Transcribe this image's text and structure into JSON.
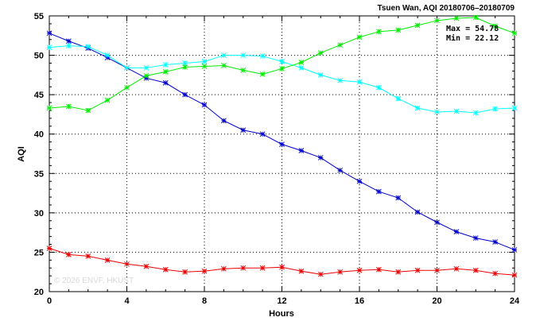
{
  "chart_data": {
    "type": "line",
    "title": "Tsuen Wan, AQI 20180706–20180709",
    "xlabel": "Hours",
    "ylabel": "AQI",
    "xlim": [
      0,
      24
    ],
    "ylim": [
      20,
      55
    ],
    "xticks": [
      0,
      4,
      8,
      12,
      16,
      20,
      24
    ],
    "yticks": [
      20,
      25,
      30,
      35,
      40,
      45,
      50,
      55
    ],
    "grid": true,
    "stats": {
      "max": "Max = 54.78",
      "min": "Min = 22.12"
    },
    "watermark": "© 2026 ENVF, HKUST",
    "x": [
      0,
      1,
      2,
      3,
      4,
      5,
      6,
      7,
      8,
      9,
      10,
      11,
      12,
      13,
      14,
      15,
      16,
      17,
      18,
      19,
      20,
      21,
      22,
      23,
      24
    ],
    "series": [
      {
        "color": "#0000cc",
        "values": [
          52.8,
          51.8,
          50.9,
          49.7,
          48.4,
          47.1,
          46.5,
          45.0,
          43.7,
          41.7,
          40.5,
          40.0,
          38.7,
          37.9,
          37.0,
          35.4,
          34.0,
          32.7,
          31.9,
          30.1,
          28.8,
          27.6,
          26.8,
          26.3,
          25.3
        ]
      },
      {
        "color": "#00ffff",
        "values": [
          51.0,
          51.2,
          51.1,
          50.0,
          48.4,
          48.4,
          48.8,
          49.0,
          49.2,
          50.0,
          50.0,
          49.9,
          49.2,
          48.4,
          47.5,
          46.8,
          46.6,
          45.9,
          44.5,
          43.3,
          42.8,
          42.9,
          42.7,
          43.2,
          43.3
        ]
      },
      {
        "color": "#00ee00",
        "values": [
          43.3,
          43.5,
          43.0,
          44.3,
          45.9,
          47.4,
          47.9,
          48.5,
          48.6,
          48.7,
          48.1,
          47.6,
          48.3,
          49.1,
          50.3,
          51.3,
          52.3,
          53.0,
          53.2,
          53.8,
          54.4,
          54.7,
          54.8,
          53.7,
          52.8
        ]
      },
      {
        "color": "#ee0000",
        "values": [
          25.5,
          24.7,
          24.5,
          24.0,
          23.5,
          23.2,
          22.8,
          22.5,
          22.6,
          22.9,
          23.0,
          23.0,
          23.1,
          22.6,
          22.2,
          22.5,
          22.7,
          22.8,
          22.5,
          22.7,
          22.7,
          22.9,
          22.7,
          22.3,
          22.1
        ]
      }
    ]
  }
}
